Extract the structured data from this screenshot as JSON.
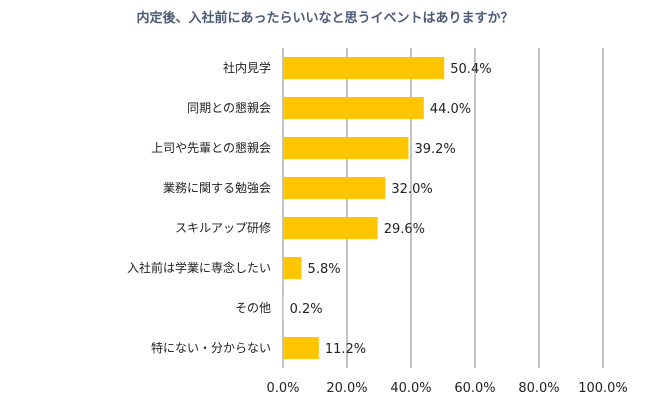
{
  "chart_data": {
    "type": "bar",
    "orientation": "horizontal",
    "title": "内定後、入社前にあったらいいなと思うイベントはありますか？",
    "categories": [
      "社内見学",
      "同期との懇親会",
      "上司や先輩との懇親会",
      "業務に関する勉強会",
      "スキルアップ研修",
      "入社前は学業に専念したい",
      "その他",
      "特にない・分からない"
    ],
    "values": [
      50.4,
      44.0,
      39.2,
      32.0,
      29.6,
      5.8,
      0.2,
      11.2
    ],
    "value_labels": [
      "50.4%",
      "44.0%",
      "39.2%",
      "32.0%",
      "29.6%",
      "5.8%",
      "0.2%",
      "11.2%"
    ],
    "xlim": [
      0,
      100
    ],
    "x_ticks": [
      "0.0%",
      "20.0%",
      "40.0%",
      "60.0%",
      "80.0%",
      "100.0%"
    ],
    "grid": "vertical",
    "bar_color": "#ffc600",
    "grid_color": "#888888"
  }
}
